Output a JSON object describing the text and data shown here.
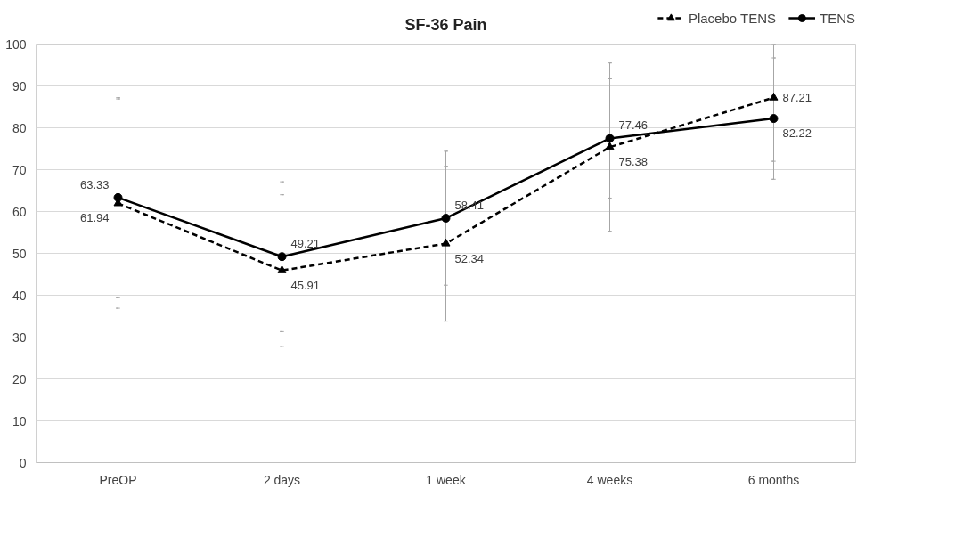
{
  "chart_data": {
    "type": "line",
    "title": "SF-36 Pain",
    "categories": [
      "PreOP",
      "2 days",
      "1 week",
      "4 weeks",
      "6 months"
    ],
    "series": [
      {
        "name": "Placebo TENS",
        "color": "#000000",
        "line_style": "dashed",
        "marker": "triangle",
        "values": [
          61.94,
          45.91,
          52.34,
          75.38,
          87.21
        ],
        "errors": [
          [
            36.9,
            86.9
          ],
          [
            27.8,
            64.0
          ],
          [
            33.8,
            70.8
          ],
          [
            55.3,
            95.5
          ],
          [
            72.0,
            100
          ]
        ]
      },
      {
        "name": "TENS",
        "color": "#000000",
        "line_style": "solid",
        "marker": "circle",
        "values": [
          63.33,
          49.21,
          58.41,
          77.46,
          82.22
        ],
        "errors": [
          [
            39.4,
            87.2
          ],
          [
            31.3,
            67.1
          ],
          [
            42.4,
            74.4
          ],
          [
            63.2,
            91.7
          ],
          [
            67.7,
            96.7
          ]
        ]
      }
    ],
    "ylim": [
      0,
      100
    ],
    "yticks": [
      0,
      10,
      20,
      30,
      40,
      50,
      60,
      70,
      80,
      90,
      100
    ],
    "grid": "y",
    "legend": "top right",
    "data_labels": true
  }
}
